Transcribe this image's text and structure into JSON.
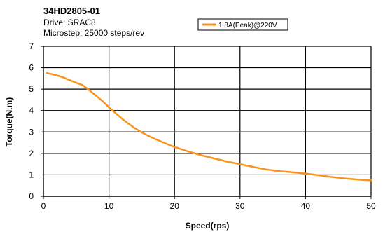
{
  "header": {
    "model": "34HD2805-01",
    "drive": "Drive: SRAC8",
    "microstep": "Microstep: 25000 steps/rev"
  },
  "chart_data": {
    "type": "line",
    "xlabel": "Speed(rps)",
    "ylabel": "Torque(N.m)",
    "xlim": [
      0,
      50
    ],
    "ylim": [
      0,
      7
    ],
    "xticks": [
      0,
      10,
      20,
      30,
      40,
      50
    ],
    "yticks": [
      0,
      1,
      2,
      3,
      4,
      5,
      6,
      7
    ],
    "grid": true,
    "legend_position": "top-center",
    "series": [
      {
        "name": "1.8A(Peak)@220V",
        "color": "#f7941d",
        "x": [
          0.5,
          1,
          2,
          3,
          4,
          5,
          6,
          7,
          8,
          9,
          10,
          11,
          12,
          13,
          14,
          15,
          16,
          17,
          18,
          19,
          20,
          22,
          24,
          26,
          28,
          30,
          32,
          34,
          36,
          38,
          40,
          42,
          44,
          46,
          48,
          50
        ],
        "y": [
          5.75,
          5.72,
          5.65,
          5.55,
          5.42,
          5.3,
          5.18,
          4.95,
          4.7,
          4.45,
          4.15,
          3.88,
          3.62,
          3.38,
          3.17,
          2.98,
          2.82,
          2.68,
          2.55,
          2.42,
          2.3,
          2.1,
          1.92,
          1.77,
          1.62,
          1.5,
          1.37,
          1.25,
          1.17,
          1.12,
          1.06,
          0.98,
          0.9,
          0.83,
          0.78,
          0.74
        ]
      }
    ]
  }
}
